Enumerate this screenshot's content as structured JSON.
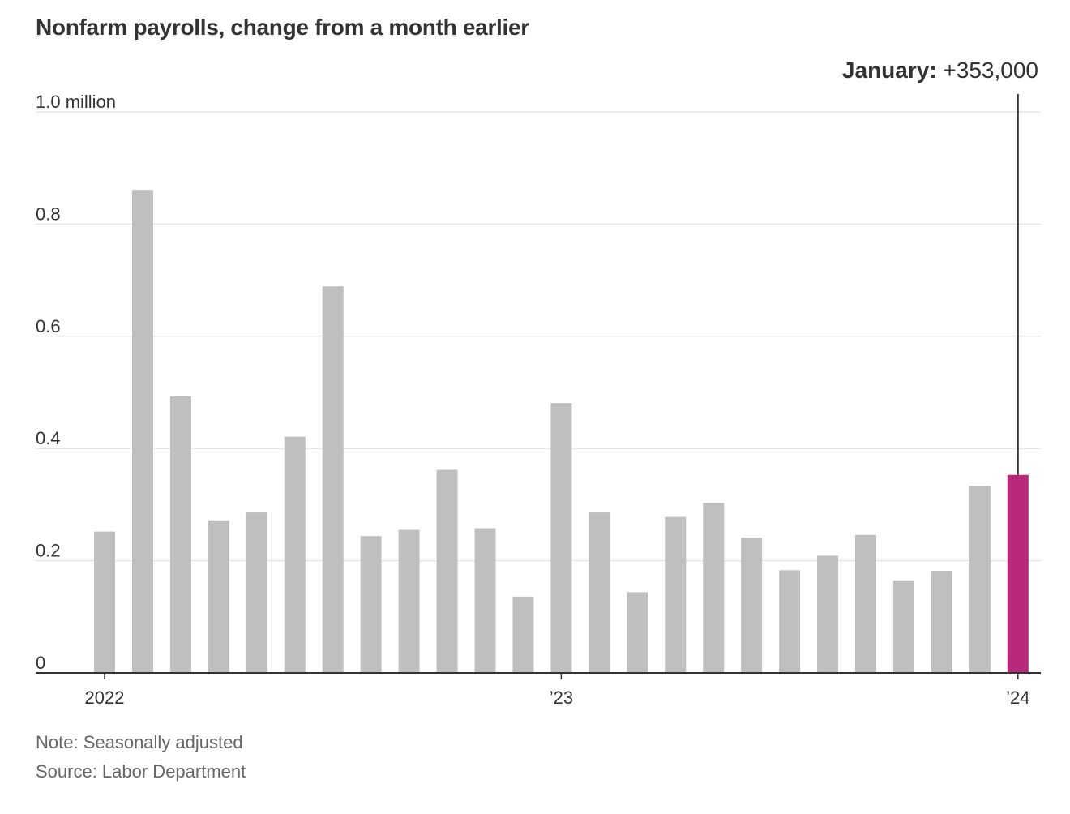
{
  "chart_data": {
    "type": "bar",
    "title": "Nonfarm payrolls, change from a month earlier",
    "xlabel": "",
    "ylabel": "",
    "unit": "million",
    "ylim": [
      0,
      1.0
    ],
    "yticks": [
      {
        "value": 0,
        "label": "0"
      },
      {
        "value": 0.2,
        "label": "0.2"
      },
      {
        "value": 0.4,
        "label": "0.4"
      },
      {
        "value": 0.6,
        "label": "0.6"
      },
      {
        "value": 0.8,
        "label": "0.8"
      },
      {
        "value": 1.0,
        "label": "1.0 million"
      }
    ],
    "xticks": [
      {
        "index": 0,
        "label": "2022"
      },
      {
        "index": 12,
        "label": "’23"
      },
      {
        "index": 24,
        "label": "’24"
      }
    ],
    "categories": [
      "Jan 2022",
      "Feb 2022",
      "Mar 2022",
      "Apr 2022",
      "May 2022",
      "Jun 2022",
      "Jul 2022",
      "Aug 2022",
      "Sep 2022",
      "Oct 2022",
      "Nov 2022",
      "Dec 2022",
      "Jan 2023",
      "Feb 2023",
      "Mar 2023",
      "Apr 2023",
      "May 2023",
      "Jun 2023",
      "Jul 2023",
      "Aug 2023",
      "Sep 2023",
      "Oct 2023",
      "Nov 2023",
      "Dec 2023",
      "Jan 2024"
    ],
    "values": [
      0.252,
      0.861,
      0.493,
      0.272,
      0.286,
      0.421,
      0.689,
      0.244,
      0.255,
      0.362,
      0.258,
      0.136,
      0.481,
      0.286,
      0.144,
      0.278,
      0.303,
      0.241,
      0.183,
      0.209,
      0.246,
      0.165,
      0.182,
      0.333,
      0.353
    ],
    "colors": {
      "bar": "#bfbfbf",
      "highlight": "#b8297a",
      "grid": "#dddddd",
      "axis": "#333333",
      "callout_line": "#333333"
    },
    "highlight_index": 24,
    "annotation": {
      "label": "January:",
      "value": "+353,000"
    },
    "grid": true
  },
  "notes": {
    "note": "Note: Seasonally adjusted",
    "source": "Source: Labor Department"
  }
}
